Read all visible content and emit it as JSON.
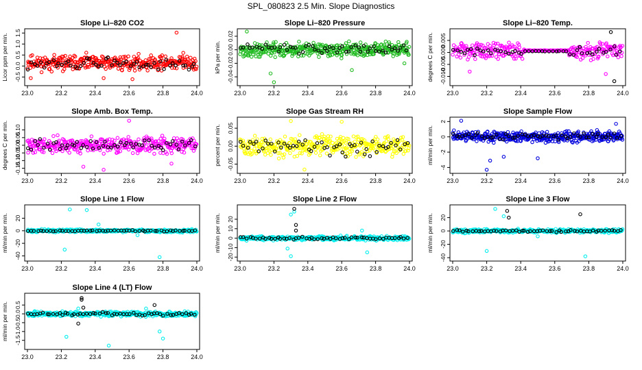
{
  "page_title": "SPL_080823  2.5 Min. Slope Diagnostics",
  "colors": {
    "red": "#ff0000",
    "green": "#22bb22",
    "magenta": "#ff00ff",
    "yellow": "#ffff00",
    "blue": "#0000dd",
    "cyan": "#00eeee",
    "black": "#000000"
  },
  "chart_data": [
    {
      "type": "scatter",
      "title": "Slope Li–820 CO2",
      "ylabel": "Licor ppm per min.",
      "xlabel": "",
      "xlim": [
        23.0,
        24.0
      ],
      "ylim": [
        -0.8,
        1.6
      ],
      "xticks": [
        "23.0",
        "23.2",
        "23.4",
        "23.6",
        "23.8",
        "24.0"
      ],
      "yticks": [
        -0.5,
        0.0,
        0.5,
        1.0,
        1.5
      ],
      "ytick_labels": [
        "-0.5",
        "0.0",
        "0.5",
        "1.0",
        "1.5"
      ],
      "color": "red",
      "series": [
        {
          "name": "colored",
          "pattern": {
            "n": 360,
            "base": 0.15,
            "spread": 0.3,
            "seed": 11
          },
          "outliers": [
            [
              23.88,
              1.52
            ],
            [
              23.92,
              0.6
            ],
            [
              23.62,
              -0.6
            ],
            [
              23.45,
              -0.55
            ],
            [
              23.02,
              -0.55
            ]
          ]
        },
        {
          "name": "black",
          "pattern": {
            "n": 55,
            "base": 0.1,
            "spread": 0.25,
            "seed": 12
          },
          "outliers": []
        }
      ]
    },
    {
      "type": "scatter",
      "title": "Slope Li–820 Pressure",
      "ylabel": "kPa per min.",
      "xlabel": "",
      "xlim": [
        23.0,
        24.0
      ],
      "ylim": [
        -0.05,
        0.028
      ],
      "xticks": [
        "23.0",
        "23.2",
        "23.4",
        "23.6",
        "23.8",
        "24.0"
      ],
      "yticks": [
        -0.04,
        -0.02,
        0.0,
        0.02
      ],
      "ytick_labels": [
        "-0.04",
        "-0.02",
        "0.00",
        "0.02"
      ],
      "color": "green",
      "series": [
        {
          "name": "colored",
          "pattern": {
            "n": 420,
            "base": 0.0,
            "spread": 0.009,
            "seed": 21
          },
          "outliers": [
            [
              23.04,
              0.027
            ],
            [
              23.2,
              -0.048
            ],
            [
              23.18,
              -0.035
            ],
            [
              23.66,
              -0.03
            ],
            [
              23.97,
              -0.02
            ]
          ]
        },
        {
          "name": "black",
          "pattern": {
            "n": 55,
            "base": 0.002,
            "spread": 0.006,
            "seed": 22
          },
          "outliers": []
        }
      ]
    },
    {
      "type": "scatter",
      "title": "Slope Li–820 Temp.",
      "ylabel": "degrees C per min.",
      "xlabel": "",
      "xlim": [
        23.0,
        24.0
      ],
      "ylim": [
        -0.013,
        0.009
      ],
      "xticks": [
        "23.0",
        "23.2",
        "23.4",
        "23.6",
        "23.8",
        "24.0"
      ],
      "yticks": [
        -0.01,
        -0.005,
        0.0,
        0.005
      ],
      "ytick_labels": [
        "-0.010",
        "-0.005",
        "0.000",
        "0.005"
      ],
      "color": "magenta",
      "series": [
        {
          "name": "colored",
          "pattern": {
            "n": 330,
            "base": 0.0008,
            "spread": 0.003,
            "seed": 31,
            "flat": [
              23.42,
              23.68
            ]
          },
          "outliers": [
            [
              23.1,
              -0.008
            ],
            [
              23.9,
              -0.009
            ]
          ]
        },
        {
          "name": "black",
          "pattern": {
            "n": 50,
            "base": 0.0005,
            "spread": 0.002,
            "seed": 32,
            "flat": [
              23.42,
              23.68
            ]
          },
          "outliers": [
            [
              23.93,
              0.0085
            ],
            [
              23.95,
              -0.012
            ]
          ]
        }
      ]
    },
    {
      "type": "scatter",
      "title": "Slope Amb. Box Temp.",
      "ylabel": "degrees C per min.",
      "xlabel": "",
      "xlim": [
        23.0,
        24.0
      ],
      "ylim": [
        -0.17,
        0.17
      ],
      "xticks": [
        "23.0",
        "23.2",
        "23.4",
        "23.6",
        "23.8",
        "24.0"
      ],
      "yticks": [
        -0.15,
        -0.1,
        -0.05,
        0.0,
        0.05,
        0.1
      ],
      "ytick_labels": [
        "-0.15",
        "-0.10",
        "-0.05",
        "0.00",
        "0.05",
        "0.10"
      ],
      "color": "magenta",
      "series": [
        {
          "name": "colored",
          "pattern": {
            "n": 360,
            "base": 0.0,
            "spread": 0.045,
            "seed": 41
          },
          "outliers": [
            [
              23.6,
              0.16
            ],
            [
              23.45,
              -0.16
            ],
            [
              23.33,
              -0.14
            ],
            [
              23.85,
              -0.12
            ]
          ]
        },
        {
          "name": "black",
          "pattern": {
            "n": 55,
            "base": 0.0,
            "spread": 0.03,
            "seed": 42
          },
          "outliers": []
        }
      ]
    },
    {
      "type": "scatter",
      "title": "Slope Gas Stream RH",
      "ylabel": "percent per min.",
      "xlabel": "",
      "xlim": [
        23.0,
        24.0
      ],
      "ylim": [
        -0.07,
        0.075
      ],
      "xticks": [
        "23.0",
        "23.2",
        "23.4",
        "23.6",
        "23.8",
        "24.0"
      ],
      "yticks": [
        -0.05,
        0.0,
        0.05
      ],
      "ytick_labels": [
        "-0.05",
        "0.00",
        "0.05"
      ],
      "color": "yellow",
      "series": [
        {
          "name": "colored",
          "pattern": {
            "n": 360,
            "base": 0.0,
            "spread": 0.025,
            "seed": 51
          },
          "outliers": [
            [
              23.3,
              0.07
            ],
            [
              23.6,
              0.068
            ],
            [
              23.38,
              -0.065
            ]
          ]
        },
        {
          "name": "black",
          "pattern": {
            "n": 55,
            "base": 0.0,
            "spread": 0.022,
            "seed": 52
          },
          "outliers": []
        }
      ]
    },
    {
      "type": "scatter",
      "title": "Slope Sample Flow",
      "ylabel": "ml/min per min.",
      "xlabel": "",
      "xlim": [
        23.0,
        24.0
      ],
      "ylim": [
        -4.5,
        2.3
      ],
      "xticks": [
        "23.0",
        "23.2",
        "23.4",
        "23.6",
        "23.8",
        "24.0"
      ],
      "yticks": [
        -4,
        -2,
        0,
        2
      ],
      "ytick_labels": [
        "-4",
        "-2",
        "0",
        "2"
      ],
      "color": "blue",
      "series": [
        {
          "name": "colored",
          "pattern": {
            "n": 420,
            "base": 0.0,
            "spread": 0.6,
            "seed": 61
          },
          "outliers": [
            [
              23.2,
              -4.3
            ],
            [
              23.22,
              -3.1
            ],
            [
              23.3,
              -2.6
            ],
            [
              23.5,
              -2.8
            ],
            [
              23.05,
              2.1
            ],
            [
              23.96,
              1.7
            ]
          ]
        },
        {
          "name": "black",
          "pattern": {
            "n": 55,
            "base": 0.1,
            "spread": 0.4,
            "seed": 62
          },
          "outliers": []
        }
      ]
    },
    {
      "type": "scatter",
      "title": "Slope Line 1 Flow",
      "ylabel": "ml/min per min.",
      "xlabel": "",
      "xlim": [
        23.0,
        24.0
      ],
      "ylim": [
        -45,
        38
      ],
      "xticks": [
        "23.0",
        "23.2",
        "23.4",
        "23.6",
        "23.8",
        "24.0"
      ],
      "yticks": [
        -40,
        -20,
        0,
        20
      ],
      "ytick_labels": [
        "-40",
        "-20",
        "0",
        "20"
      ],
      "color": "cyan",
      "series": [
        {
          "name": "colored",
          "pattern": {
            "n": 400,
            "base": 0.0,
            "spread": 2.0,
            "seed": 71
          },
          "outliers": [
            [
              23.25,
              34
            ],
            [
              23.35,
              33
            ],
            [
              23.22,
              -30
            ],
            [
              23.78,
              -42
            ],
            [
              23.42,
              10
            ],
            [
              23.65,
              -7
            ]
          ]
        },
        {
          "name": "black",
          "pattern": {
            "n": 55,
            "base": 0.0,
            "spread": 1.0,
            "seed": 72
          },
          "outliers": []
        }
      ]
    },
    {
      "type": "scatter",
      "title": "Slope Line 2 Flow",
      "ylabel": "ml/min per min.",
      "xlabel": "",
      "xlim": [
        23.0,
        24.0
      ],
      "ylim": [
        -22,
        33
      ],
      "xticks": [
        "23.0",
        "23.2",
        "23.4",
        "23.6",
        "23.8",
        "24.0"
      ],
      "yticks": [
        -20,
        -10,
        0,
        10,
        20
      ],
      "ytick_labels": [
        "-20",
        "-10",
        "0",
        "10",
        "20"
      ],
      "color": "cyan",
      "series": [
        {
          "name": "colored",
          "pattern": {
            "n": 400,
            "base": 0.0,
            "spread": 2.0,
            "seed": 81
          },
          "outliers": [
            [
              23.3,
              25
            ],
            [
              23.32,
              28
            ],
            [
              23.3,
              -19
            ],
            [
              23.75,
              -15
            ],
            [
              23.72,
              8
            ],
            [
              23.28,
              -11
            ]
          ]
        },
        {
          "name": "black",
          "pattern": {
            "n": 55,
            "base": 0.0,
            "spread": 1.2,
            "seed": 82
          },
          "outliers": [
            [
              23.32,
              31
            ],
            [
              23.33,
              14
            ],
            [
              23.33,
              8
            ]
          ]
        }
      ]
    },
    {
      "type": "scatter",
      "title": "Slope Line 3 Flow",
      "ylabel": "ml/min per min.",
      "xlabel": "",
      "xlim": [
        23.0,
        24.0
      ],
      "ylim": [
        -42,
        36
      ],
      "xticks": [
        "23.0",
        "23.2",
        "23.4",
        "23.6",
        "23.8",
        "24.0"
      ],
      "yticks": [
        -40,
        -20,
        0,
        20
      ],
      "ytick_labels": [
        "-40",
        "-20",
        "0",
        "20"
      ],
      "color": "cyan",
      "series": [
        {
          "name": "colored",
          "pattern": {
            "n": 400,
            "base": 0.0,
            "spread": 2.5,
            "seed": 91
          },
          "outliers": [
            [
              23.25,
              33
            ],
            [
              23.2,
              -30
            ],
            [
              23.3,
              22
            ],
            [
              23.78,
              -38
            ],
            [
              23.5,
              -8
            ]
          ]
        },
        {
          "name": "black",
          "pattern": {
            "n": 55,
            "base": 0.0,
            "spread": 1.5,
            "seed": 92
          },
          "outliers": [
            [
              23.32,
              30
            ],
            [
              23.75,
              25
            ],
            [
              23.33,
              20
            ]
          ]
        }
      ]
    },
    {
      "type": "scatter",
      "title": "Slope Line 4 (LT) Flow",
      "ylabel": "ml/min per min.",
      "xlabel": "",
      "xlim": [
        23.0,
        24.0
      ],
      "ylim": [
        -1.9,
        1.05
      ],
      "xticks": [
        "23.0",
        "23.2",
        "23.4",
        "23.6",
        "23.8",
        "24.0"
      ],
      "yticks": [
        -1.5,
        -1.0,
        -0.5,
        0.0,
        0.5
      ],
      "ytick_labels": [
        "-1.5",
        "-1.0",
        "-0.5",
        "0.0",
        "0.5"
      ],
      "color": "cyan",
      "series": [
        {
          "name": "colored",
          "pattern": {
            "n": 400,
            "base": 0.0,
            "spread": 0.12,
            "seed": 101
          },
          "outliers": [
            [
              23.23,
              -1.3
            ],
            [
              23.48,
              -1.8
            ],
            [
              23.8,
              -1.4
            ],
            [
              23.78,
              -1.0
            ],
            [
              23.7,
              0.3
            ],
            [
              23.3,
              0.3
            ]
          ]
        },
        {
          "name": "black",
          "pattern": {
            "n": 55,
            "base": 0.0,
            "spread": 0.08,
            "seed": 102
          },
          "outliers": [
            [
              23.32,
              0.9
            ],
            [
              23.32,
              0.8
            ],
            [
              23.33,
              0.35
            ],
            [
              23.75,
              0.5
            ],
            [
              23.3,
              -0.55
            ]
          ]
        }
      ]
    }
  ]
}
